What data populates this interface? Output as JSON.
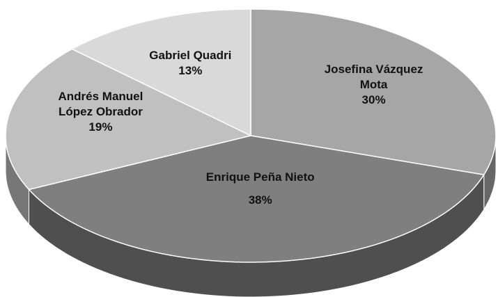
{
  "chart_data": {
    "type": "pie",
    "categories": [
      "Josefina Vázquez Mota",
      "Enrique Peña Nieto",
      "Andrés Manuel López Obrador",
      "Gabriel Quadri"
    ],
    "values": [
      30,
      38,
      19,
      13
    ],
    "value_labels": [
      "30%",
      "38%",
      "19%",
      "13%"
    ],
    "colors": [
      "#a6a6a6",
      "#7f7f7f",
      "#c0c0c0",
      "#d9d9d9"
    ],
    "start_angle": 0,
    "direction": "clockwise",
    "three_d": true
  }
}
